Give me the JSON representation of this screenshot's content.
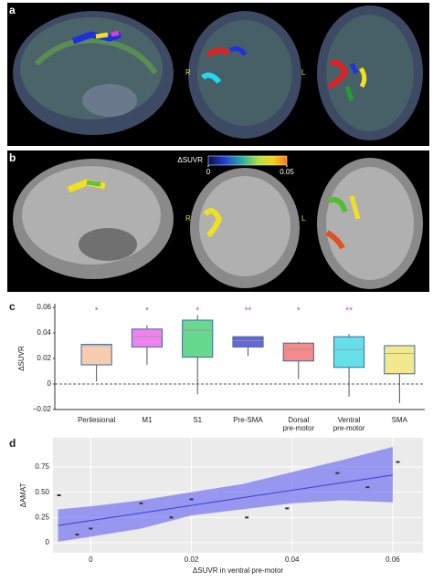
{
  "panels": {
    "a": {
      "label": "a",
      "left_side": "R",
      "right_side": "L"
    },
    "b": {
      "label": "b",
      "left_side": "R",
      "right_side": "L",
      "colorbar": {
        "title": "ΔSUVR",
        "lim": [
          0,
          0.05
        ],
        "ticks": [
          0,
          0.05
        ]
      }
    },
    "c": {
      "label": "c"
    },
    "d": {
      "label": "d"
    }
  },
  "chart_data": [
    {
      "type": "box",
      "ylabel": "ΔSUVR",
      "categories": [
        "Perilesional",
        "M1",
        "S1",
        "Pre-SMA",
        "Dorsal\npre-motor",
        "Ventral\npre-motor",
        "SMA"
      ],
      "boxes": [
        {
          "min": 0.002,
          "q1": 0.015,
          "median": 0.03,
          "q3": 0.031,
          "max": 0.031,
          "color": "#f7cdb0"
        },
        {
          "min": 0.015,
          "q1": 0.029,
          "median": 0.037,
          "q3": 0.043,
          "max": 0.046,
          "color": "#ee82ee"
        },
        {
          "min": -0.008,
          "q1": 0.021,
          "median": 0.042,
          "q3": 0.05,
          "max": 0.054,
          "color": "#66d98f"
        },
        {
          "min": 0.022,
          "q1": 0.029,
          "median": 0.034,
          "q3": 0.037,
          "max": 0.037,
          "color": "#6666dd"
        },
        {
          "min": 0.004,
          "q1": 0.018,
          "median": 0.027,
          "q3": 0.032,
          "max": 0.033,
          "color": "#f48a8a"
        },
        {
          "min": -0.01,
          "q1": 0.013,
          "median": 0.027,
          "q3": 0.037,
          "max": 0.039,
          "color": "#66e0e8"
        },
        {
          "min": -0.015,
          "q1": 0.008,
          "median": 0.024,
          "q3": 0.03,
          "max": 0.03,
          "color": "#f2e88e"
        }
      ],
      "annotations": [
        "*",
        "*",
        "*",
        "**",
        "*",
        "**",
        null
      ],
      "annotation_color": "#b24fc9",
      "ylim": [
        -0.02,
        0.06
      ],
      "yticks": [
        {
          "value": -0.02,
          "label": "–0.02"
        },
        0,
        0.02,
        0.04,
        0.06
      ],
      "reference_line": 0
    },
    {
      "type": "scatter",
      "xlabel": "ΔSUVR in ventral pre-motor",
      "ylabel": "ΔAMAT",
      "x": [
        -0.0063,
        -0.0027,
        0,
        0.01,
        0.016,
        0.02,
        0.031,
        0.039,
        0.049,
        0.055,
        0.061
      ],
      "values": [
        0.47,
        0.08,
        0.14,
        0.39,
        0.25,
        0.43,
        0.25,
        0.34,
        0.69,
        0.55,
        0.8
      ],
      "color": "#333333",
      "fit": {
        "x": [
          -0.0065,
          0.06
        ],
        "y": [
          0.17,
          0.67
        ],
        "color": "#3b3bdc",
        "ci_x": [
          -0.0065,
          0,
          0.01,
          0.02,
          0.03,
          0.04,
          0.05,
          0.06
        ],
        "ci_upper": [
          0.33,
          0.36,
          0.42,
          0.5,
          0.58,
          0.7,
          0.82,
          0.95
        ],
        "ci_lower": [
          0.01,
          0.06,
          0.14,
          0.27,
          0.33,
          0.39,
          0.42,
          0.4
        ],
        "ci_color": "#7b7bf0"
      },
      "xlim": [
        -0.0075,
        0.066
      ],
      "ylim": [
        -0.1,
        1.04
      ],
      "xticks": [
        0,
        0.02,
        0.04,
        0.06
      ],
      "yticks": [
        0,
        0.25,
        {
          "value": 0.5,
          "label": "0.50"
        },
        0.75
      ],
      "grid": true,
      "background": "#ebebeb"
    }
  ]
}
